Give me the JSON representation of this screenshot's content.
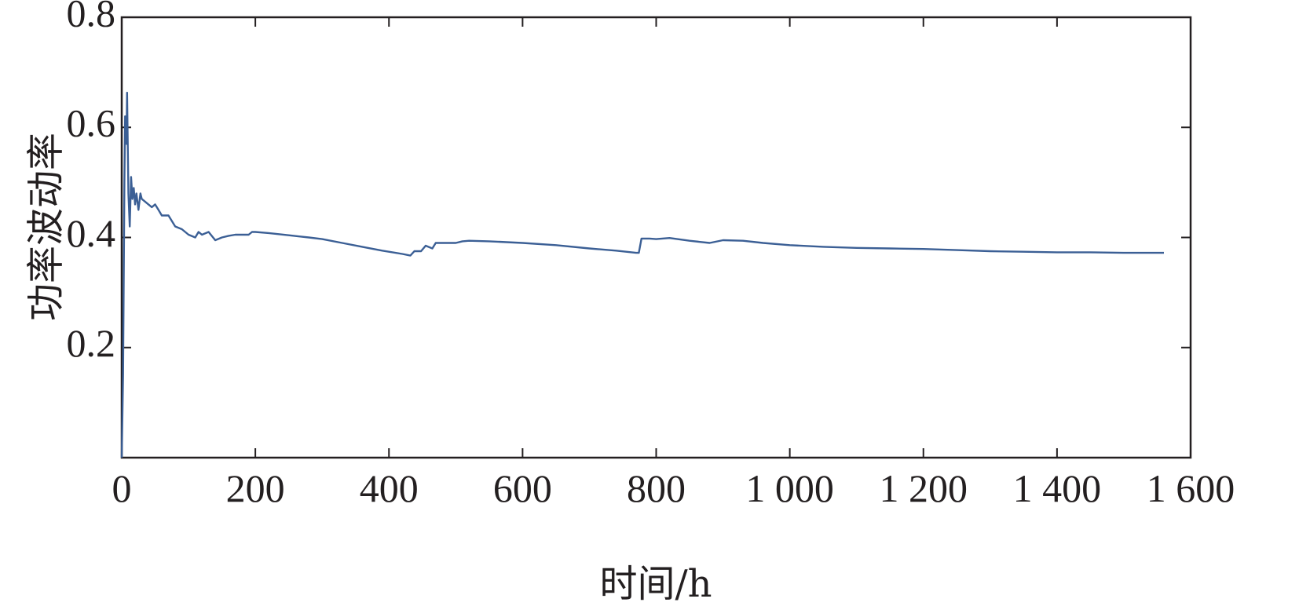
{
  "chart_data": {
    "type": "line",
    "title": "",
    "xlabel": "时间/h",
    "ylabel": "功率波动率",
    "xlim": [
      0,
      1600
    ],
    "ylim": [
      0,
      0.8
    ],
    "xticks": [
      0,
      200,
      400,
      600,
      800,
      1000,
      1200,
      1400,
      1600
    ],
    "xtick_labels": [
      "0",
      "200",
      "400",
      "600",
      "800",
      "1 000",
      "1 200",
      "1 400",
      "1 600"
    ],
    "yticks": [
      0.2,
      0.4,
      0.6,
      0.8
    ],
    "ytick_labels": [
      "0.2",
      "0.4",
      "0.6",
      "0.8"
    ],
    "grid": false,
    "color": "#3b5f95",
    "series": [
      {
        "x": [
          0,
          2,
          4,
          5,
          7,
          8,
          10,
          12,
          14,
          16,
          18,
          20,
          22,
          25,
          28,
          30,
          35,
          40,
          45,
          50,
          55,
          60,
          70,
          80,
          90,
          100,
          110,
          115,
          120,
          130,
          140,
          150,
          160,
          170,
          180,
          190,
          195,
          200,
          220,
          250,
          280,
          300,
          330,
          360,
          390,
          420,
          432,
          438,
          448,
          455,
          465,
          470,
          480,
          500,
          510,
          520,
          550,
          600,
          650,
          700,
          740,
          770,
          774,
          778,
          790,
          800,
          820,
          850,
          880,
          900,
          930,
          960,
          1000,
          1050,
          1100,
          1150,
          1200,
          1250,
          1300,
          1350,
          1400,
          1450,
          1500,
          1560
        ],
        "y": [
          0.0,
          0.15,
          0.5,
          0.62,
          0.57,
          0.663,
          0.48,
          0.42,
          0.51,
          0.47,
          0.49,
          0.46,
          0.48,
          0.45,
          0.48,
          0.47,
          0.465,
          0.46,
          0.455,
          0.46,
          0.45,
          0.44,
          0.44,
          0.42,
          0.415,
          0.405,
          0.4,
          0.41,
          0.405,
          0.41,
          0.395,
          0.4,
          0.403,
          0.405,
          0.405,
          0.405,
          0.41,
          0.41,
          0.408,
          0.404,
          0.4,
          0.397,
          0.39,
          0.383,
          0.376,
          0.37,
          0.367,
          0.375,
          0.375,
          0.385,
          0.38,
          0.39,
          0.39,
          0.39,
          0.393,
          0.394,
          0.393,
          0.39,
          0.386,
          0.38,
          0.376,
          0.372,
          0.372,
          0.398,
          0.398,
          0.397,
          0.399,
          0.394,
          0.39,
          0.395,
          0.394,
          0.39,
          0.386,
          0.383,
          0.381,
          0.38,
          0.379,
          0.377,
          0.375,
          0.374,
          0.373,
          0.373,
          0.372,
          0.372
        ]
      }
    ]
  }
}
